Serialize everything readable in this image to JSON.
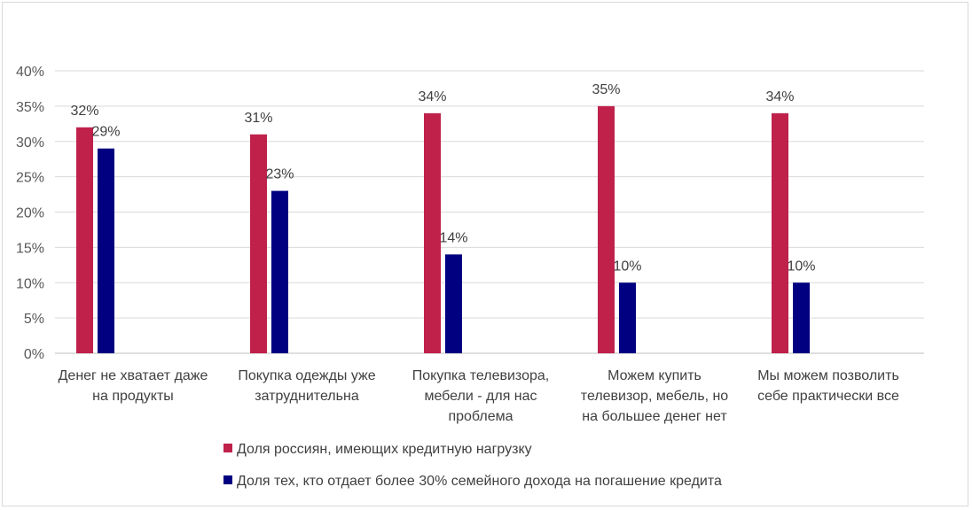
{
  "chart_data": {
    "type": "bar",
    "categories": [
      [
        "Денег не хватает даже",
        "на продукты"
      ],
      [
        "Покупка одежды уже",
        "затруднительна"
      ],
      [
        "Покупка телевизора,",
        "мебели - для нас",
        "проблема"
      ],
      [
        "Можем купить",
        "телевизор, мебель, но",
        "на большее денег нет"
      ],
      [
        "Мы можем позволить",
        "себе практически все"
      ]
    ],
    "series": [
      {
        "name": "Доля россиян, имеющих кредитную нагрузку",
        "color": "#C0214B",
        "values": [
          32,
          31,
          34,
          35,
          34
        ]
      },
      {
        "name": "Доля тех, кто отдает более 30% семейного дохода на погашение кредита",
        "color": "#000080",
        "values": [
          29,
          23,
          14,
          10,
          10
        ]
      }
    ],
    "ylim": [
      0,
      40
    ],
    "yticks": [
      0,
      5,
      10,
      15,
      20,
      25,
      30,
      35,
      40
    ],
    "value_suffix": "%",
    "grid": true,
    "legend_position": "bottom",
    "title": "",
    "xlabel": "",
    "ylabel": ""
  }
}
